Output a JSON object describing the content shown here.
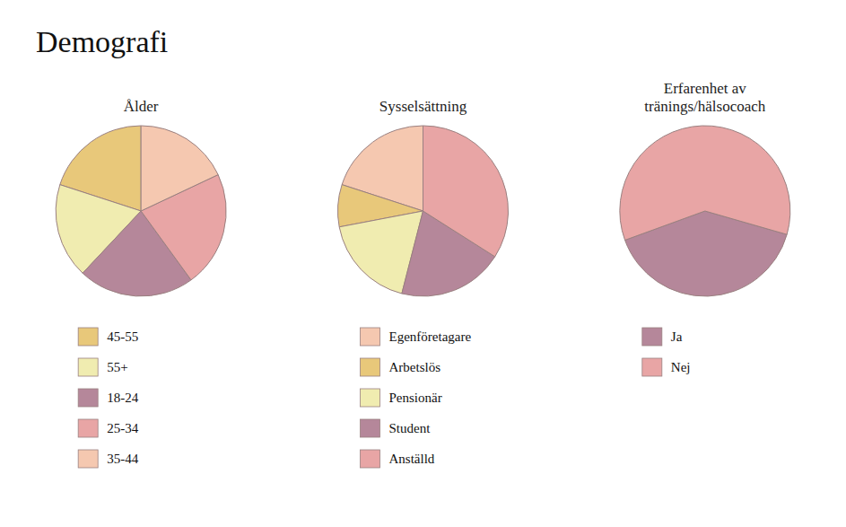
{
  "title": "Demografi",
  "chart_data": [
    {
      "type": "pie",
      "title": "Ålder",
      "categories": [
        "45-55",
        "55+",
        "18-24",
        "25-34",
        "35-44"
      ],
      "values": [
        20,
        18,
        22,
        22,
        18
      ],
      "colors": [
        "#e8c87a",
        "#f0ecb0",
        "#b5879a",
        "#e8a5a5",
        "#f5c8b0"
      ],
      "legend": "bottom"
    },
    {
      "type": "pie",
      "title": "Sysselsättning",
      "categories": [
        "Egenföretagare",
        "Arbetslös",
        "Pensionär",
        "Student",
        "Anställd"
      ],
      "values": [
        20,
        8,
        18,
        20,
        34
      ],
      "colors": [
        "#f5c8b0",
        "#e8c87a",
        "#f0ecb0",
        "#b5879a",
        "#e8a5a5"
      ],
      "legend": "bottom"
    },
    {
      "type": "pie",
      "title": "Erfarenhet av\ntränings/hälsocoach",
      "categories": [
        "Ja",
        "Nej"
      ],
      "values": [
        40,
        60
      ],
      "colors": [
        "#b5879a",
        "#e8a5a5"
      ],
      "legend": "bottom"
    }
  ]
}
